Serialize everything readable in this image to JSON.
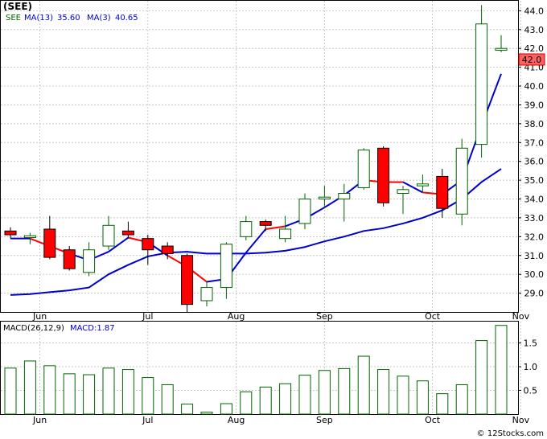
{
  "header": {
    "symbol": "(SEE)",
    "legend_ticker": "SEE",
    "legend_ma13": "MA(13)",
    "legend_ma13_value": "35.60",
    "legend_ma3": "MA(3)",
    "legend_ma3_value": "40.65"
  },
  "last_price_label": "42.0",
  "macd_legend": {
    "label": "MACD(26,12,9)",
    "value": "MACD:1.87"
  },
  "watermark": "© 12Stocks.com",
  "colors": {
    "up_candle": "#006400",
    "down_candle": "#ff0000",
    "ma_long": "#0000cc",
    "ma_short": "#ff0000",
    "grid": "#c8c8c8",
    "macd_bar": "#006400",
    "price_label_bg": "#ff6060"
  },
  "chart_data": {
    "type": "candlestick",
    "x_tick_labels": [
      "Jun",
      "Jul",
      "Aug",
      "Sep",
      "Oct",
      "Nov"
    ],
    "y_tick_labels": [
      "29.0",
      "30.0",
      "31.0",
      "32.0",
      "33.0",
      "34.0",
      "35.0",
      "36.0",
      "37.0",
      "38.0",
      "39.0",
      "40.0",
      "41.0",
      "42.0",
      "43.0",
      "44.0"
    ],
    "ylim": [
      28.0,
      44.4
    ],
    "month_positions": [
      1.5,
      7.0,
      11.5,
      16.0,
      21.5,
      26.0
    ],
    "candles": [
      {
        "o": 32.3,
        "h": 32.5,
        "l": 31.9,
        "c": 32.1
      },
      {
        "o": 31.95,
        "h": 32.2,
        "l": 31.6,
        "c": 32.05
      },
      {
        "o": 32.4,
        "h": 33.1,
        "l": 30.8,
        "c": 30.9
      },
      {
        "o": 31.3,
        "h": 31.5,
        "l": 30.2,
        "c": 30.3
      },
      {
        "o": 30.1,
        "h": 31.7,
        "l": 29.9,
        "c": 31.3
      },
      {
        "o": 31.5,
        "h": 33.1,
        "l": 31.3,
        "c": 32.6
      },
      {
        "o": 32.3,
        "h": 32.8,
        "l": 31.9,
        "c": 32.1
      },
      {
        "o": 31.9,
        "h": 32.1,
        "l": 30.5,
        "c": 31.3
      },
      {
        "o": 31.5,
        "h": 31.7,
        "l": 30.8,
        "c": 31.1
      },
      {
        "o": 31.0,
        "h": 31.1,
        "l": 28.0,
        "c": 28.4
      },
      {
        "o": 28.6,
        "h": 29.6,
        "l": 28.3,
        "c": 29.3
      },
      {
        "o": 29.3,
        "h": 31.7,
        "l": 28.7,
        "c": 31.6
      },
      {
        "o": 32.0,
        "h": 33.1,
        "l": 31.8,
        "c": 32.8
      },
      {
        "o": 32.8,
        "h": 32.9,
        "l": 32.3,
        "c": 32.6
      },
      {
        "o": 31.9,
        "h": 33.1,
        "l": 31.7,
        "c": 32.4
      },
      {
        "o": 32.7,
        "h": 34.3,
        "l": 32.4,
        "c": 34.0
      },
      {
        "o": 34.0,
        "h": 34.7,
        "l": 33.5,
        "c": 34.1
      },
      {
        "o": 34.0,
        "h": 34.8,
        "l": 32.8,
        "c": 34.3
      },
      {
        "o": 34.6,
        "h": 36.7,
        "l": 34.5,
        "c": 36.6
      },
      {
        "o": 36.7,
        "h": 36.8,
        "l": 33.6,
        "c": 33.8
      },
      {
        "o": 34.3,
        "h": 34.7,
        "l": 33.2,
        "c": 34.5
      },
      {
        "o": 34.7,
        "h": 35.3,
        "l": 34.4,
        "c": 34.8
      },
      {
        "o": 35.2,
        "h": 35.6,
        "l": 33.0,
        "c": 33.5
      },
      {
        "o": 33.2,
        "h": 37.2,
        "l": 32.6,
        "c": 36.7
      },
      {
        "o": 36.9,
        "h": 44.3,
        "l": 36.2,
        "c": 43.3
      },
      {
        "o": 41.9,
        "h": 42.7,
        "l": 41.8,
        "c": 42.0
      }
    ],
    "ma13": [
      28.9,
      28.95,
      29.05,
      29.15,
      29.3,
      30.0,
      30.5,
      30.95,
      31.15,
      31.2,
      31.1,
      31.1,
      31.1,
      31.15,
      31.25,
      31.45,
      31.75,
      32.0,
      32.3,
      32.45,
      32.7,
      33.0,
      33.4,
      34.0,
      34.9,
      35.6
    ],
    "ma3": [
      31.9,
      31.9,
      31.5,
      31.1,
      30.75,
      31.2,
      31.95,
      31.7,
      31.0,
      30.4,
      29.6,
      29.75,
      31.15,
      32.4,
      32.55,
      32.95,
      33.55,
      34.2,
      35.0,
      34.9,
      34.9,
      34.35,
      34.25,
      35.0,
      37.9,
      40.65
    ],
    "macd": {
      "ylim": [
        0,
        1.95
      ],
      "y_tick_labels": [
        "0.5",
        "1.0",
        "1.5"
      ],
      "values": [
        0.97,
        1.12,
        1.02,
        0.85,
        0.83,
        0.97,
        0.94,
        0.77,
        0.62,
        0.21,
        0.04,
        0.22,
        0.47,
        0.57,
        0.64,
        0.82,
        0.92,
        0.96,
        1.22,
        0.94,
        0.8,
        0.7,
        0.43,
        0.62,
        1.55,
        1.87
      ]
    }
  }
}
